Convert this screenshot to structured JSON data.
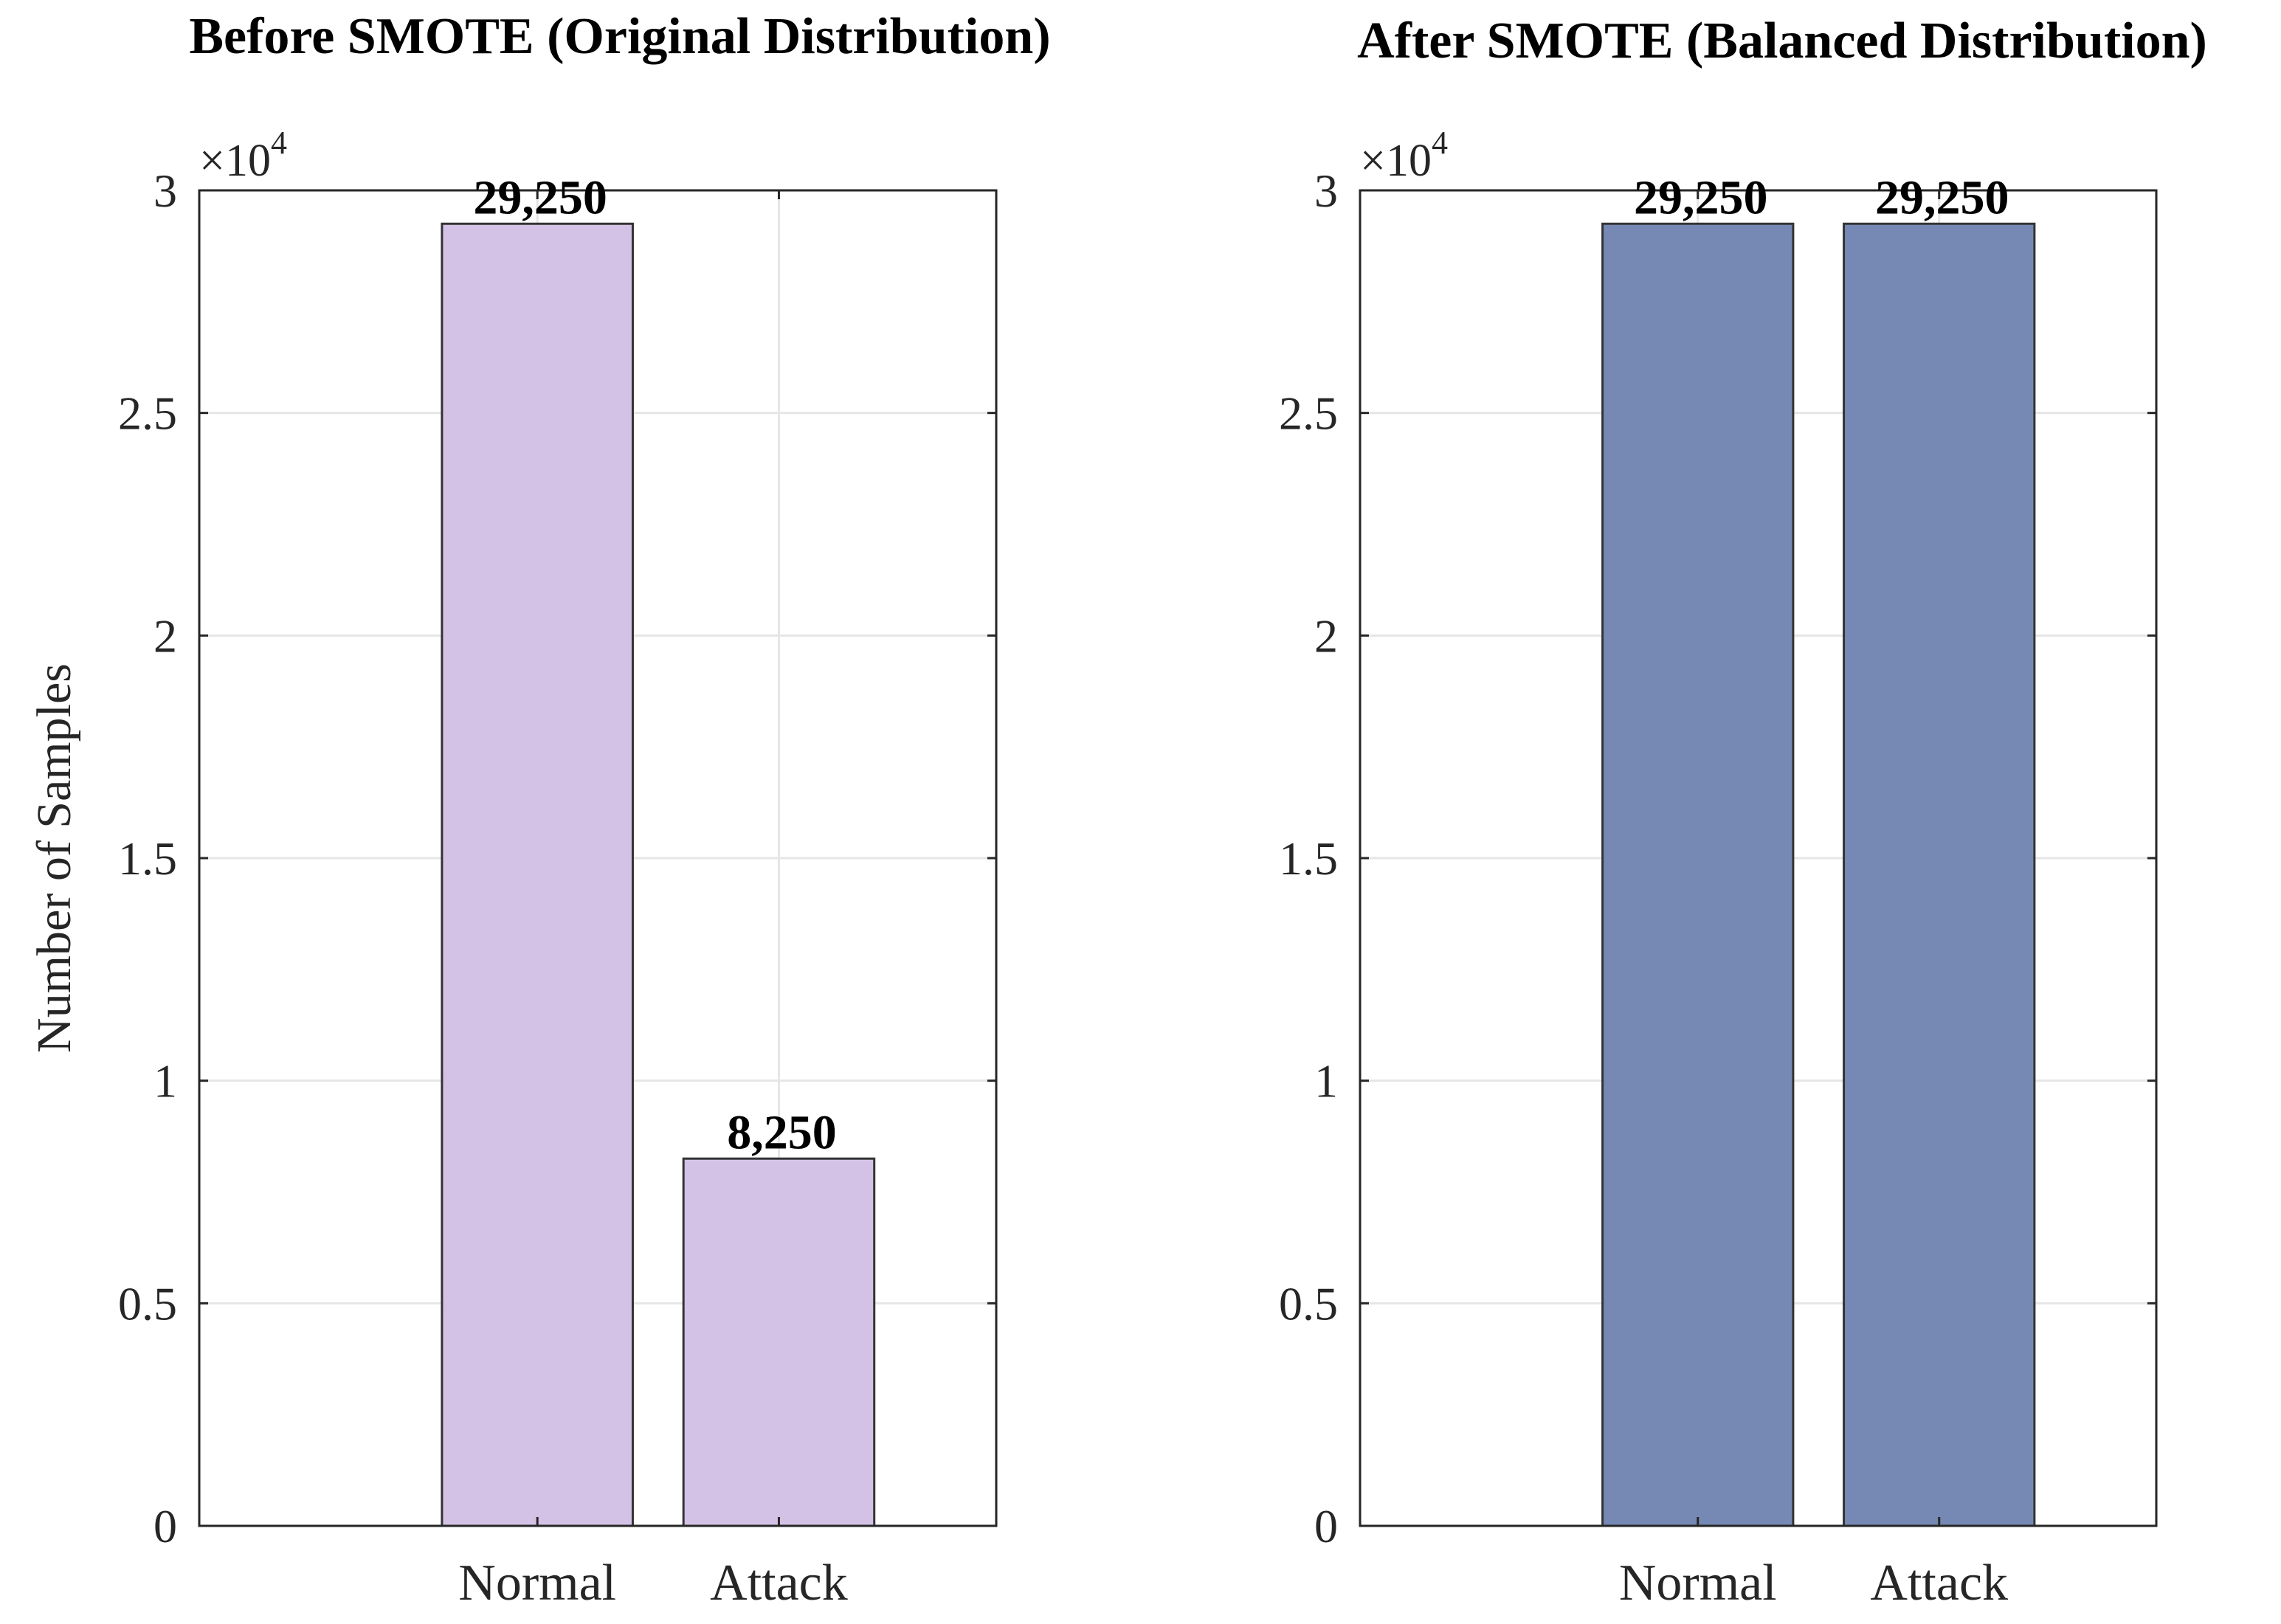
{
  "chart_data": [
    {
      "type": "bar",
      "title": "Before SMOTE (Original Distribution)",
      "categories": [
        "Normal",
        "Attack"
      ],
      "values": [
        29250,
        8250
      ],
      "data_labels": [
        "29,250",
        "8,250"
      ],
      "ylabel": "Number of Samples",
      "ylim": [
        0,
        30000
      ],
      "yticks": [
        "0",
        "0.5",
        "1",
        "1.5",
        "2",
        "2.5",
        "3"
      ],
      "y_exponent": {
        "base": "×10",
        "power": "4"
      },
      "bar_color": "#d4c2e6",
      "grid": true
    },
    {
      "type": "bar",
      "title": "After SMOTE (Balanced Distribution)",
      "categories": [
        "Normal",
        "Attack"
      ],
      "values": [
        29250,
        29250
      ],
      "data_labels": [
        "29,250",
        "29,250"
      ],
      "ylabel": "",
      "ylim": [
        0,
        30000
      ],
      "yticks": [
        "0",
        "0.5",
        "1",
        "1.5",
        "2",
        "2.5",
        "3"
      ],
      "y_exponent": {
        "base": "×10",
        "power": "4"
      },
      "bar_color": "#7589b4",
      "grid": true
    }
  ]
}
